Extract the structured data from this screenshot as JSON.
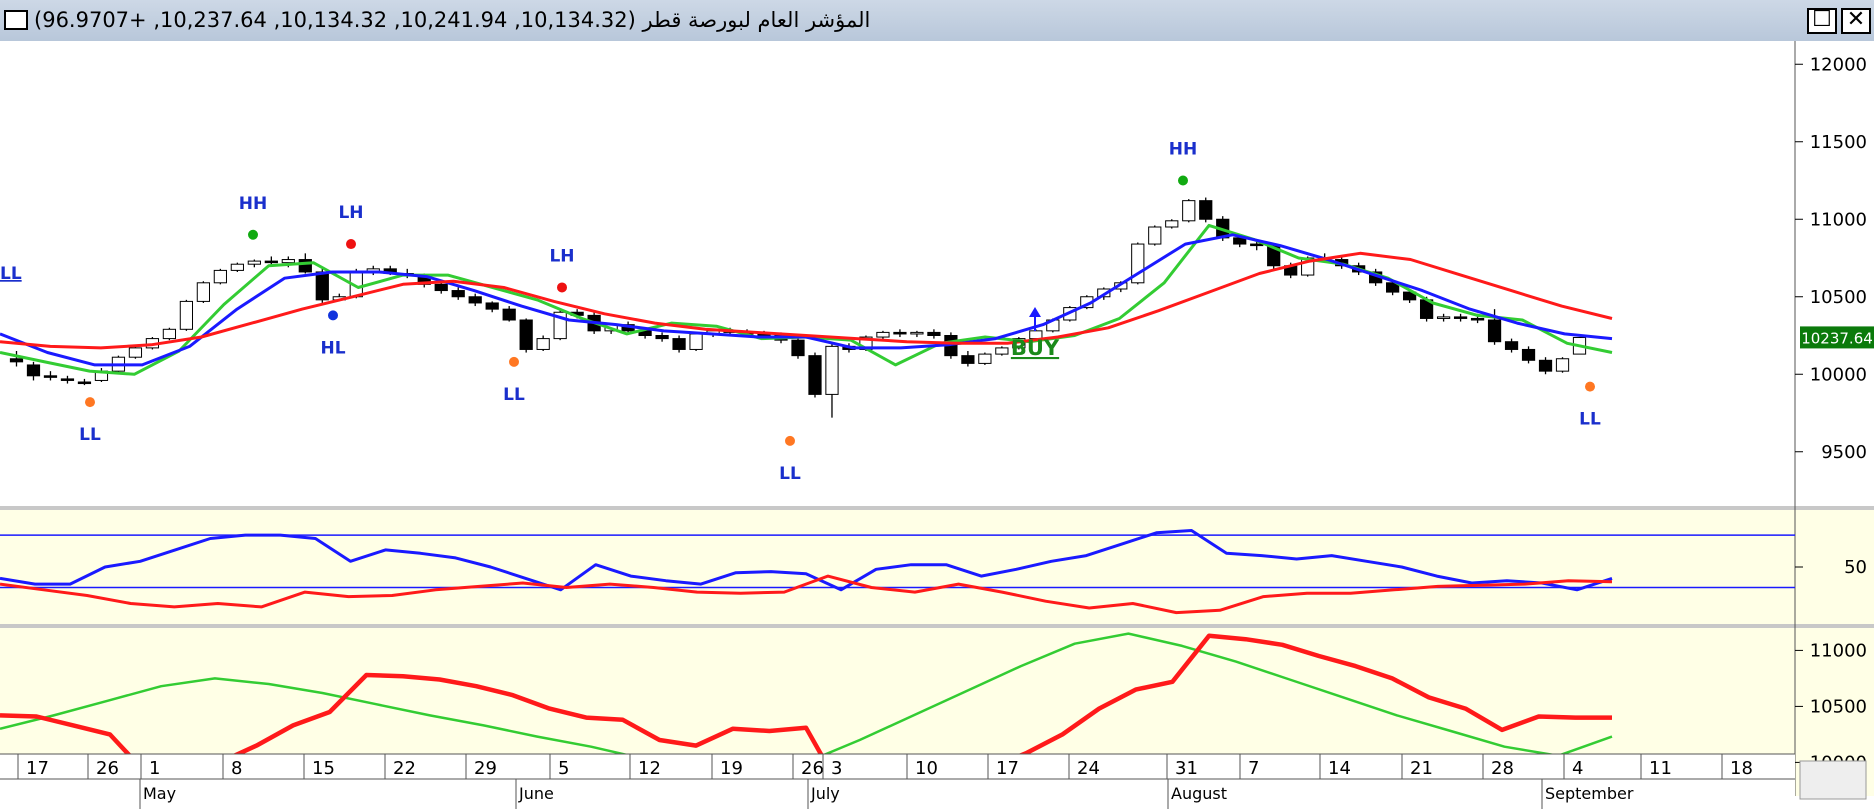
{
  "window": {
    "title": "المؤشر العام لبورصة قطر (10,134.32, 10,241.94, 10,134.32, 10,237.64, +96.9707)",
    "maximize_glyph": "☐",
    "close_glyph": "✕"
  },
  "colors": {
    "bg": "#ffffff",
    "indicator_bg": "#ffffe6",
    "ma_green": "#33cc33",
    "ma_blue": "#1a1aff",
    "ma_red": "#ff1a1a",
    "buy": "#1a8a1a",
    "label_blue": "#1a2fcc",
    "dot_orange": "#ff7722",
    "dot_red": "#ee1111",
    "dot_green": "#11aa11",
    "dot_blue": "#1133dd",
    "price_tag_bg": "#0b7a0b"
  },
  "chart_data": [
    {
      "type": "candlestick",
      "name": "price",
      "current_price_label": "10237.64",
      "y_ticks": [
        12000,
        11500,
        11000,
        10500,
        10000,
        9500
      ],
      "ylim": [
        9150,
        12150
      ],
      "x_ticks": [
        "17",
        "26",
        "1",
        "8",
        "15",
        "22",
        "29",
        "5",
        "12",
        "19",
        "26",
        "3",
        "10",
        "17",
        "24",
        "31",
        "7",
        "14",
        "21",
        "28",
        "4",
        "11",
        "18"
      ],
      "months": [
        "May",
        "June",
        "July",
        "August",
        "September"
      ],
      "moving_averages": [
        {
          "color": "green",
          "values": [
            10140,
            10080,
            10020,
            10000,
            10150,
            10450,
            10700,
            10720,
            10560,
            10640,
            10640,
            10560,
            10480,
            10360,
            10260,
            10330,
            10310,
            10230,
            10240,
            10220,
            10060,
            10200,
            10240,
            10210,
            10250,
            10360,
            10590,
            10960,
            10870,
            10750,
            10710,
            10620,
            10460,
            10380,
            10350,
            10200,
            10140
          ]
        },
        {
          "color": "blue",
          "values": [
            10260,
            10140,
            10060,
            10060,
            10180,
            10420,
            10620,
            10660,
            10660,
            10630,
            10540,
            10440,
            10350,
            10320,
            10280,
            10260,
            10240,
            10240,
            10170,
            10170,
            10190,
            10230,
            10320,
            10460,
            10650,
            10840,
            10900,
            10830,
            10740,
            10640,
            10540,
            10420,
            10330,
            10260,
            10230
          ]
        },
        {
          "color": "red",
          "values": [
            10210,
            10180,
            10170,
            10190,
            10240,
            10330,
            10420,
            10500,
            10580,
            10600,
            10560,
            10470,
            10390,
            10330,
            10290,
            10270,
            10250,
            10230,
            10210,
            10200,
            10200,
            10240,
            10300,
            10410,
            10530,
            10650,
            10730,
            10780,
            10740,
            10640,
            10540,
            10440,
            10360
          ]
        }
      ],
      "signals": [
        {
          "label": "LL",
          "value": 9820,
          "dot": "orange",
          "pos": "below"
        },
        {
          "label": "HH",
          "value": 10900,
          "dot": "green",
          "pos": "above"
        },
        {
          "label": "HL",
          "value": 10380,
          "dot": "blue",
          "pos": "below"
        },
        {
          "label": "LH",
          "value": 10840,
          "dot": "red",
          "pos": "above"
        },
        {
          "label": "LL",
          "value": 10080,
          "dot": "orange",
          "pos": "below"
        },
        {
          "label": "LH",
          "value": 10560,
          "dot": "red",
          "pos": "above"
        },
        {
          "label": "LL",
          "value": 9570,
          "dot": "orange",
          "pos": "below"
        },
        {
          "label": "HH",
          "value": 11250,
          "dot": "green",
          "pos": "above"
        },
        {
          "label": "LL",
          "value": 9920,
          "dot": "orange",
          "pos": "below"
        }
      ],
      "buy_label": "BUY",
      "left_edge_label": "LL",
      "candles": [
        [
          10100,
          10150,
          10050,
          10080
        ],
        [
          10060,
          10080,
          9960,
          9990
        ],
        [
          9990,
          10020,
          9960,
          9980
        ],
        [
          9970,
          9990,
          9940,
          9960
        ],
        [
          9950,
          9970,
          9930,
          9940
        ],
        [
          9960,
          10040,
          9950,
          10020
        ],
        [
          10020,
          10120,
          10010,
          10110
        ],
        [
          10110,
          10180,
          10100,
          10170
        ],
        [
          10170,
          10240,
          10160,
          10230
        ],
        [
          10230,
          10300,
          10220,
          10290
        ],
        [
          10290,
          10480,
          10280,
          10470
        ],
        [
          10470,
          10600,
          10460,
          10590
        ],
        [
          10590,
          10680,
          10580,
          10670
        ],
        [
          10670,
          10720,
          10660,
          10710
        ],
        [
          10710,
          10740,
          10690,
          10730
        ],
        [
          10730,
          10760,
          10700,
          10720
        ],
        [
          10720,
          10760,
          10690,
          10740
        ],
        [
          10740,
          10780,
          10650,
          10660
        ],
        [
          10660,
          10680,
          10460,
          10480
        ],
        [
          10480,
          10520,
          10470,
          10500
        ],
        [
          10500,
          10680,
          10490,
          10660
        ],
        [
          10660,
          10700,
          10640,
          10680
        ],
        [
          10680,
          10700,
          10640,
          10650
        ],
        [
          10650,
          10680,
          10620,
          10640
        ],
        [
          10640,
          10650,
          10560,
          10580
        ],
        [
          10580,
          10600,
          10520,
          10540
        ],
        [
          10540,
          10560,
          10480,
          10500
        ],
        [
          10500,
          10520,
          10440,
          10460
        ],
        [
          10460,
          10470,
          10400,
          10420
        ],
        [
          10420,
          10440,
          10340,
          10350
        ],
        [
          10350,
          10360,
          10140,
          10160
        ],
        [
          10160,
          10250,
          10150,
          10230
        ],
        [
          10230,
          10420,
          10220,
          10400
        ],
        [
          10400,
          10420,
          10360,
          10380
        ],
        [
          10380,
          10400,
          10260,
          10280
        ],
        [
          10280,
          10330,
          10260,
          10320
        ],
        [
          10320,
          10340,
          10260,
          10280
        ],
        [
          10280,
          10300,
          10230,
          10250
        ],
        [
          10250,
          10270,
          10210,
          10230
        ],
        [
          10230,
          10250,
          10140,
          10160
        ],
        [
          10160,
          10270,
          10150,
          10260
        ],
        [
          10260,
          10290,
          10240,
          10280
        ],
        [
          10280,
          10300,
          10250,
          10270
        ],
        [
          10270,
          10290,
          10240,
          10260
        ],
        [
          10260,
          10280,
          10230,
          10250
        ],
        [
          10250,
          10270,
          10200,
          10220
        ],
        [
          10220,
          10240,
          10100,
          10120
        ],
        [
          10120,
          10140,
          9850,
          9870
        ],
        [
          9870,
          10200,
          9720,
          10180
        ],
        [
          10180,
          10200,
          10140,
          10160
        ],
        [
          10160,
          10250,
          10150,
          10240
        ],
        [
          10240,
          10280,
          10220,
          10270
        ],
        [
          10270,
          10290,
          10240,
          10260
        ],
        [
          10260,
          10280,
          10240,
          10270
        ],
        [
          10270,
          10290,
          10230,
          10250
        ],
        [
          10250,
          10270,
          10100,
          10120
        ],
        [
          10120,
          10150,
          10050,
          10070
        ],
        [
          10070,
          10140,
          10060,
          10130
        ],
        [
          10130,
          10180,
          10120,
          10170
        ],
        [
          10170,
          10240,
          10160,
          10230
        ],
        [
          10230,
          10290,
          10220,
          10280
        ],
        [
          10280,
          10360,
          10270,
          10350
        ],
        [
          10350,
          10440,
          10340,
          10430
        ],
        [
          10430,
          10510,
          10420,
          10500
        ],
        [
          10500,
          10560,
          10480,
          10550
        ],
        [
          10550,
          10600,
          10530,
          10590
        ],
        [
          10590,
          10850,
          10580,
          10840
        ],
        [
          10840,
          10960,
          10830,
          10950
        ],
        [
          10950,
          11000,
          10940,
          10990
        ],
        [
          10990,
          11130,
          10980,
          11120
        ],
        [
          11120,
          11140,
          10980,
          11000
        ],
        [
          11000,
          11020,
          10860,
          10880
        ],
        [
          10880,
          10900,
          10820,
          10840
        ],
        [
          10840,
          10860,
          10800,
          10830
        ],
        [
          10830,
          10840,
          10680,
          10700
        ],
        [
          10700,
          10720,
          10620,
          10640
        ],
        [
          10640,
          10760,
          10630,
          10750
        ],
        [
          10750,
          10780,
          10720,
          10740
        ],
        [
          10740,
          10760,
          10680,
          10700
        ],
        [
          10700,
          10720,
          10640,
          10660
        ],
        [
          10660,
          10680,
          10570,
          10590
        ],
        [
          10590,
          10610,
          10510,
          10530
        ],
        [
          10530,
          10550,
          10460,
          10480
        ],
        [
          10480,
          10500,
          10340,
          10360
        ],
        [
          10360,
          10390,
          10340,
          10370
        ],
        [
          10370,
          10390,
          10340,
          10360
        ],
        [
          10360,
          10390,
          10330,
          10350
        ],
        [
          10350,
          10420,
          10190,
          10210
        ],
        [
          10210,
          10230,
          10140,
          10160
        ],
        [
          10160,
          10180,
          10070,
          10090
        ],
        [
          10090,
          10110,
          10000,
          10020
        ],
        [
          10020,
          10110,
          10010,
          10100
        ],
        [
          10130,
          10240,
          10130,
          10237
        ]
      ]
    },
    {
      "type": "line",
      "name": "oscillator",
      "y_ticks": [
        50
      ],
      "ylim": [
        0,
        100
      ],
      "hlines": [
        78,
        32
      ],
      "series": [
        {
          "color": "blue",
          "values": [
            40,
            35,
            35,
            50,
            55,
            65,
            75,
            78,
            78,
            75,
            55,
            65,
            62,
            58,
            50,
            40,
            30,
            52,
            42,
            38,
            35,
            45,
            46,
            44,
            30,
            48,
            52,
            52,
            42,
            48,
            55,
            60,
            70,
            80,
            82,
            62,
            60,
            57,
            60,
            55,
            50,
            42,
            36,
            38,
            36,
            30,
            40
          ]
        },
        {
          "color": "red",
          "values": [
            35,
            30,
            25,
            18,
            15,
            18,
            15,
            28,
            24,
            25,
            30,
            33,
            36,
            32,
            35,
            32,
            28,
            27,
            28,
            42,
            32,
            28,
            35,
            28,
            20,
            14,
            18,
            10,
            12,
            24,
            27,
            27,
            30,
            33,
            34,
            35,
            38,
            37
          ]
        }
      ]
    },
    {
      "type": "line",
      "name": "lower_indicator",
      "y_ticks": [
        11000,
        10500,
        10000
      ],
      "ylim": [
        9700,
        11200
      ],
      "series": [
        {
          "color": "green",
          "values": [
            10300,
            10420,
            10550,
            10680,
            10750,
            10700,
            10620,
            10520,
            10420,
            10330,
            10230,
            10140,
            10030,
            9940,
            9880,
            10000,
            10200,
            10420,
            10640,
            10860,
            11060,
            11150,
            11040,
            10900,
            10740,
            10580,
            10420,
            10280,
            10140,
            10060,
            10230
          ]
        },
        {
          "color": "red",
          "values": [
            10420,
            10410,
            10330,
            10250,
            9900,
            9920,
            10000,
            10150,
            10330,
            10450,
            10780,
            10770,
            10740,
            10680,
            10600,
            10480,
            10400,
            10380,
            10200,
            10150,
            10300,
            10280,
            10310,
            9730,
            9760,
            9850,
            9900,
            9950,
            10080,
            10250,
            10480,
            10650,
            10720,
            11130,
            11100,
            11050,
            10950,
            10860,
            10750,
            10580,
            10480,
            10290,
            10410,
            10400,
            10400
          ]
        }
      ]
    }
  ]
}
